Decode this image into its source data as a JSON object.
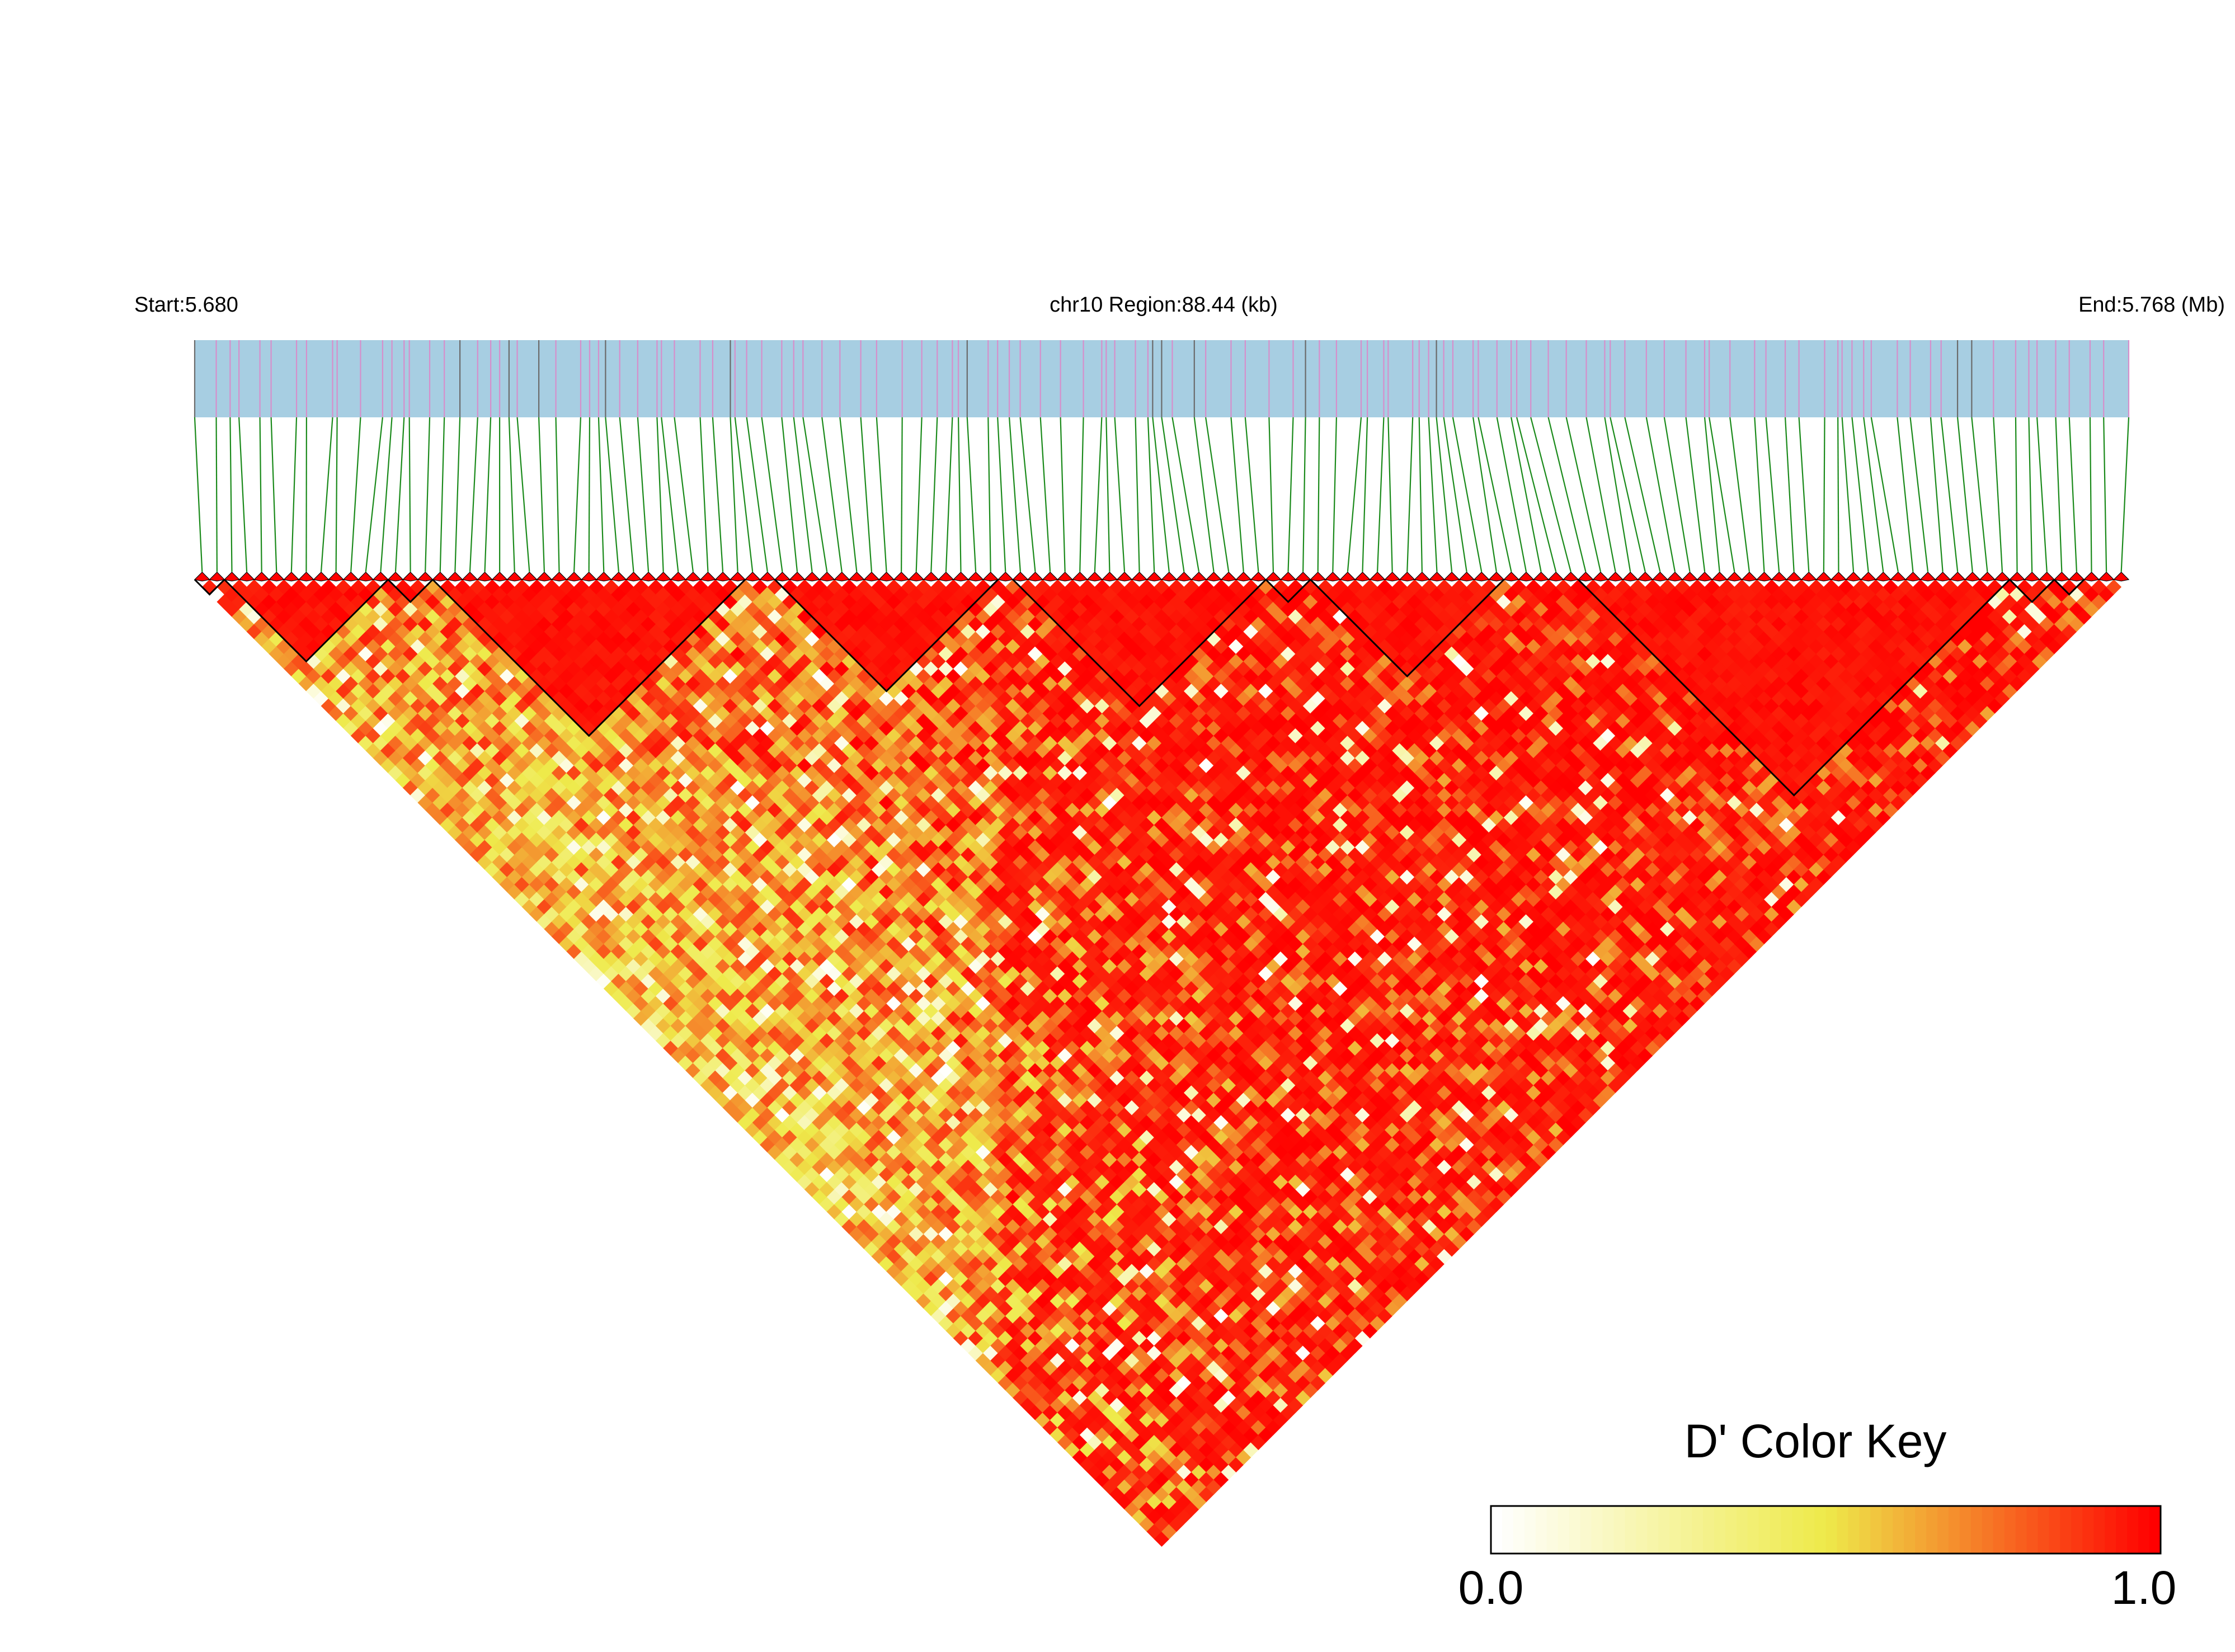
{
  "header": {
    "start_label": "Start:5.680",
    "region_label": "chr10 Region:88.44 (kb)",
    "end_label": "End:5.768 (Mb)"
  },
  "chromosome": "chr10",
  "region_start_mb": 5.68,
  "region_end_mb": 5.768,
  "region_length_kb": 88.44,
  "snp_count": 130,
  "colors": {
    "gene_bar": "#a7cee2",
    "snp_tick_primary": "#d68fcb",
    "snp_tick_secondary": "#6b6b6b",
    "connector_lines": "#1a8a1a",
    "block_outline": "#000000",
    "ld_high": "#ff0000",
    "ld_mid": "#eeea4a",
    "ld_low": "#ffffff"
  },
  "haplotype_blocks": [
    {
      "snps": "1-2"
    },
    {
      "snps": "3-13"
    },
    {
      "snps": "14-16"
    },
    {
      "snps": "17-37"
    },
    {
      "snps": "40-54"
    },
    {
      "snps": "56-72"
    },
    {
      "snps": "73-75"
    },
    {
      "snps": "76-88"
    },
    {
      "snps": "94-122"
    },
    {
      "snps": "123-125"
    },
    {
      "snps": "126-127"
    }
  ],
  "color_key": {
    "title": "D' Color Key",
    "min_label": "0.0",
    "max_label": "1.0",
    "min": 0.0,
    "max": 1.0,
    "scale": "white → yellow → red"
  }
}
